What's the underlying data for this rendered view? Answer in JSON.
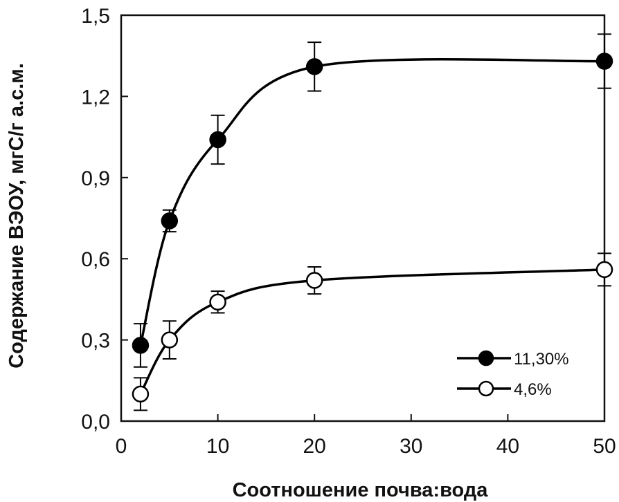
{
  "chart_data": {
    "type": "line",
    "title": "",
    "xlabel": "Соотношение почва:вода",
    "ylabel": "Содержание ВЭОУ, мгС/г а.с.м.",
    "xlim": [
      0,
      50
    ],
    "ylim": [
      0,
      1.5
    ],
    "xticks": [
      "0",
      "10",
      "20",
      "30",
      "40",
      "50"
    ],
    "yticks": [
      "0,0",
      "0,3",
      "0,6",
      "0,9",
      "1,2",
      "1,5"
    ],
    "grid": false,
    "legend_position": "bottom-right",
    "series": [
      {
        "name": "11,30%",
        "marker": "filled-circle",
        "color": "#000000",
        "x": [
          2,
          5,
          10,
          20,
          50
        ],
        "y": [
          0.28,
          0.74,
          1.04,
          1.31,
          1.33
        ],
        "error": [
          0.08,
          0.04,
          0.09,
          0.09,
          0.1
        ]
      },
      {
        "name": "4,6%",
        "marker": "open-circle",
        "color": "#000000",
        "x": [
          2,
          5,
          10,
          20,
          50
        ],
        "y": [
          0.1,
          0.3,
          0.44,
          0.52,
          0.56
        ],
        "error": [
          0.06,
          0.07,
          0.04,
          0.05,
          0.06
        ]
      }
    ]
  }
}
